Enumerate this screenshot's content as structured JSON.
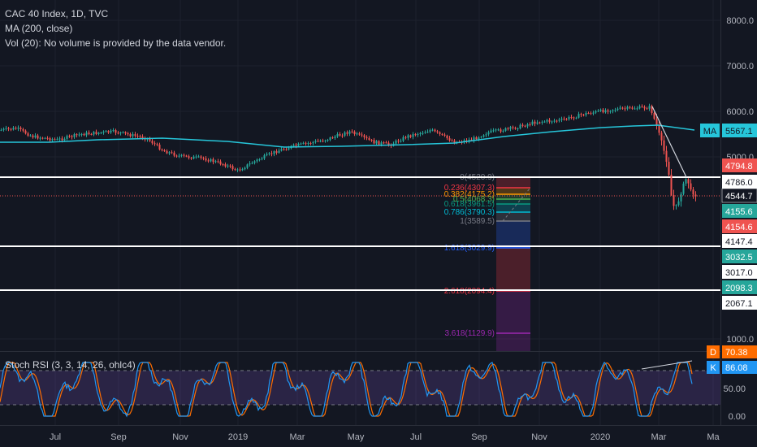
{
  "legend": {
    "symbol": "CAC 40 Index, 1D, TVC",
    "ma": "MA (200, close)",
    "vol": "Vol (20): No volume is provided by the data vendor.",
    "stoch": "Stoch RSI (3, 3, 14, 26, ohlc4)"
  },
  "price_axis": {
    "ticks": [
      "8000.0",
      "7000.0",
      "6000.0",
      "5000.0",
      "1000.0"
    ]
  },
  "stoch_axis": {
    "ticks": [
      "50.00",
      "0.00"
    ]
  },
  "time_axis": {
    "labels": [
      "Jul",
      "Sep",
      "Nov",
      "2019",
      "Mar",
      "May",
      "Jul",
      "Sep",
      "Nov",
      "2020",
      "Mar",
      "Ma"
    ]
  },
  "price_badges": [
    {
      "text": "5567.1",
      "tag": "MA",
      "bg": "#26c6da",
      "fg": "#131722"
    },
    {
      "text": "4794.8",
      "bg": "#ef5350",
      "fg": "#ffffff"
    },
    {
      "text": "4786.0",
      "bg": "#ffffff",
      "fg": "#131722"
    },
    {
      "text": "4544.7",
      "bg": "#131722",
      "fg": "#ffffff"
    },
    {
      "text": "4155.6",
      "bg": "#26a69a",
      "fg": "#ffffff"
    },
    {
      "text": "4154.6",
      "bg": "#ef5350",
      "fg": "#ffffff"
    },
    {
      "text": "4147.4",
      "bg": "#ffffff",
      "fg": "#131722"
    },
    {
      "text": "3032.5",
      "bg": "#26a69a",
      "fg": "#ffffff"
    },
    {
      "text": "3017.0",
      "bg": "#ffffff",
      "fg": "#131722"
    },
    {
      "text": "2098.3",
      "bg": "#26a69a",
      "fg": "#ffffff"
    },
    {
      "text": "2067.1",
      "bg": "#ffffff",
      "fg": "#131722"
    }
  ],
  "stoch_badges": [
    {
      "tag": "D",
      "text": "70.38",
      "bg": "#ff6d00",
      "fg": "#ffffff"
    },
    {
      "tag": "K",
      "text": "86.08",
      "bg": "#2196f3",
      "fg": "#ffffff"
    }
  ],
  "fib_levels": [
    {
      "label": "0(4520.9)",
      "color": "#787b86"
    },
    {
      "label": "0.236(4307.3)",
      "color": "#f23645"
    },
    {
      "label": "0.382(4175.2)",
      "color": "#ff9800"
    },
    {
      "label": "0.5(4068.3)",
      "color": "#4caf50"
    },
    {
      "label": "0.618(3961.5)",
      "color": "#089981"
    },
    {
      "label": "0.786(3790.3)",
      "color": "#00bcd4"
    },
    {
      "label": "1(3589.5)",
      "color": "#787b86"
    },
    {
      "label": "1.618(3029.9)",
      "color": "#2962ff"
    },
    {
      "label": "2.618(2094.4)",
      "color": "#f23645"
    },
    {
      "label": "3.618(1129.9)",
      "color": "#9c27b0"
    }
  ],
  "colors": {
    "up": "#26a69a",
    "down": "#ef5350",
    "ma": "#26c6da",
    "stoch_k": "#2196f3",
    "stoch_d": "#ff6d00",
    "stoch_band": "#7e57c2"
  }
}
